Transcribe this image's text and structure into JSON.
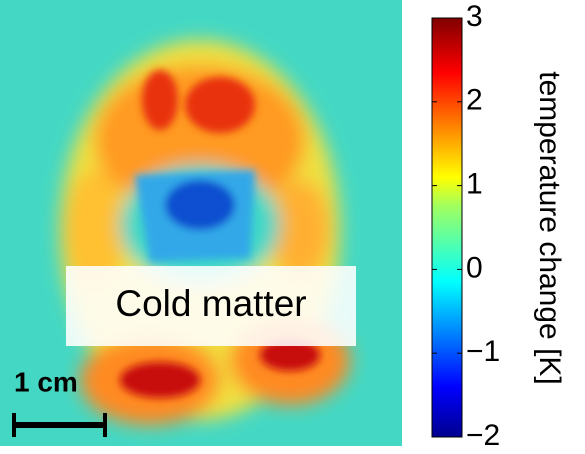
{
  "chart_data": {
    "type": "heatmap",
    "annotations": [
      "Cold matter",
      "1 cm"
    ],
    "colorbar_label": "temperature change [K]",
    "clim": [
      -2,
      3
    ],
    "cticks": [
      {
        "value": -2,
        "label": "−2"
      },
      {
        "value": -1,
        "label": "−1"
      },
      0,
      1,
      2,
      3
    ],
    "colormap": "jet"
  }
}
